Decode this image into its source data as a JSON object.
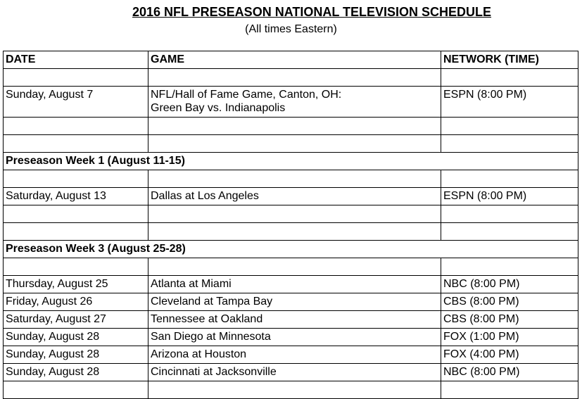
{
  "header": {
    "title": "2016 NFL PRESEASON NATIONAL TELEVISION SCHEDULE",
    "subtitle": "(All times Eastern)"
  },
  "table": {
    "columns": [
      "DATE",
      "GAME",
      "NETWORK (TIME)"
    ],
    "hof": {
      "date": "Sunday, August 7",
      "game_line1": "NFL/Hall of Fame Game, Canton, OH:",
      "game_line2": "Green Bay vs. Indianapolis",
      "network": "ESPN (8:00 PM)"
    },
    "week1": {
      "heading": "Preseason Week 1 (August 11-15)",
      "games": [
        {
          "date": "Saturday, August 13",
          "game": "Dallas at Los Angeles",
          "network": "ESPN (8:00 PM)"
        }
      ]
    },
    "week3": {
      "heading": "Preseason Week 3 (August 25-28)",
      "games": [
        {
          "date": "Thursday, August 25",
          "game": "Atlanta at Miami",
          "network": "NBC (8:00 PM)"
        },
        {
          "date": "Friday, August 26",
          "game": "Cleveland at Tampa Bay",
          "network": "CBS (8:00 PM)"
        },
        {
          "date": "Saturday, August 27",
          "game": "Tennessee at Oakland",
          "network": "CBS (8:00 PM)"
        },
        {
          "date": "Sunday, August 28",
          "game": "San Diego at Minnesota",
          "network": "FOX (1:00 PM)"
        },
        {
          "date": "Sunday, August 28",
          "game": "Arizona at Houston",
          "network": "FOX (4:00 PM)"
        },
        {
          "date": "Sunday, August 28",
          "game": "Cincinnati at Jacksonville",
          "network": "NBC (8:00 PM)"
        }
      ]
    }
  }
}
